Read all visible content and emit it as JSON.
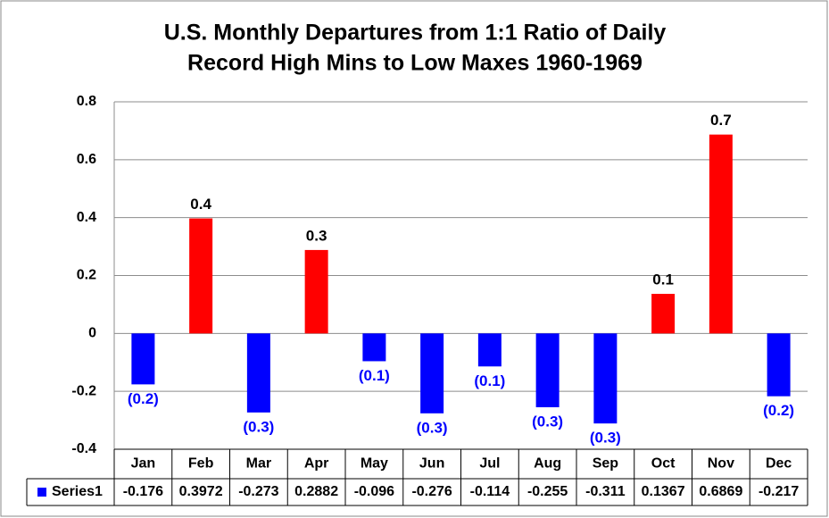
{
  "chart_data": {
    "type": "bar",
    "title_lines": [
      "U.S. Monthly Departures from 1:1 Ratio of Daily",
      "Record High Mins to Low Maxes 1960-1969"
    ],
    "categories": [
      "Jan",
      "Feb",
      "Mar",
      "Apr",
      "May",
      "Jun",
      "Jul",
      "Aug",
      "Sep",
      "Oct",
      "Nov",
      "Dec"
    ],
    "series": [
      {
        "name": "Series1",
        "color": "#0000ff",
        "values": [
          -0.176,
          0.3972,
          -0.273,
          0.2882,
          -0.096,
          -0.276,
          -0.114,
          -0.255,
          -0.311,
          0.1367,
          0.6869,
          -0.217
        ],
        "value_labels": [
          "(0.2)",
          "0.4",
          "(0.3)",
          "0.3",
          "(0.1)",
          "(0.3)",
          "(0.1)",
          "(0.3)",
          "(0.3)",
          "0.1",
          "0.7",
          "(0.2)"
        ]
      }
    ],
    "positive_color": "#ff0000",
    "ylim": [
      -0.4,
      0.8
    ],
    "yticks": [
      -0.4,
      -0.2,
      0,
      0.2,
      0.4,
      0.6,
      0.8
    ],
    "grid": true,
    "data_table": true
  }
}
